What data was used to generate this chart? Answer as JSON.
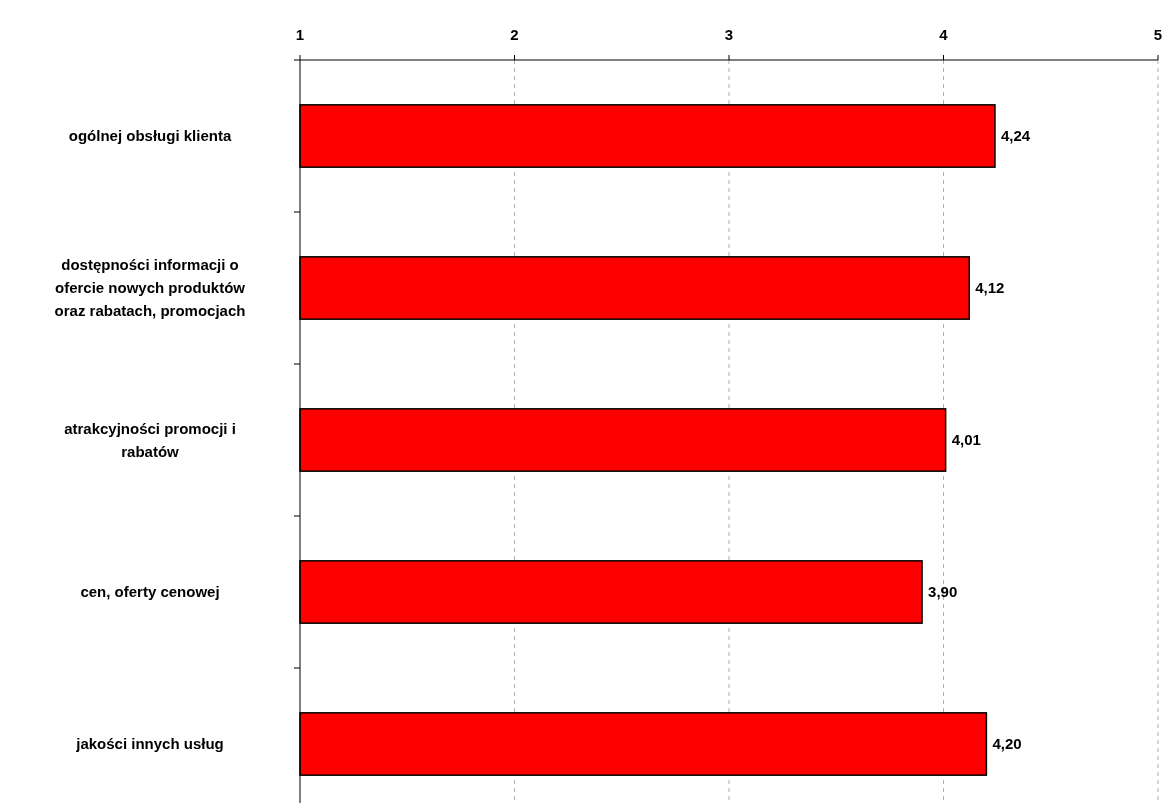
{
  "chart_data": {
    "type": "bar",
    "orientation": "horizontal",
    "categories": [
      "ogólnej obsługi klienta",
      "dostępności informacji o ofercie nowych produktów oraz rabatach, promocjach",
      "atrakcyjności promocji i rabatów",
      "cen, oferty cenowej",
      "jakości innych usług"
    ],
    "values": [
      4.24,
      4.12,
      4.01,
      3.9,
      4.2
    ],
    "value_labels": [
      "4,24",
      "4,12",
      "4,01",
      "3,90",
      "4,20"
    ],
    "color": "#ff0000",
    "xlim": [
      1,
      5
    ],
    "xticks": [
      1,
      2,
      3,
      4,
      5
    ],
    "grid": "x"
  }
}
